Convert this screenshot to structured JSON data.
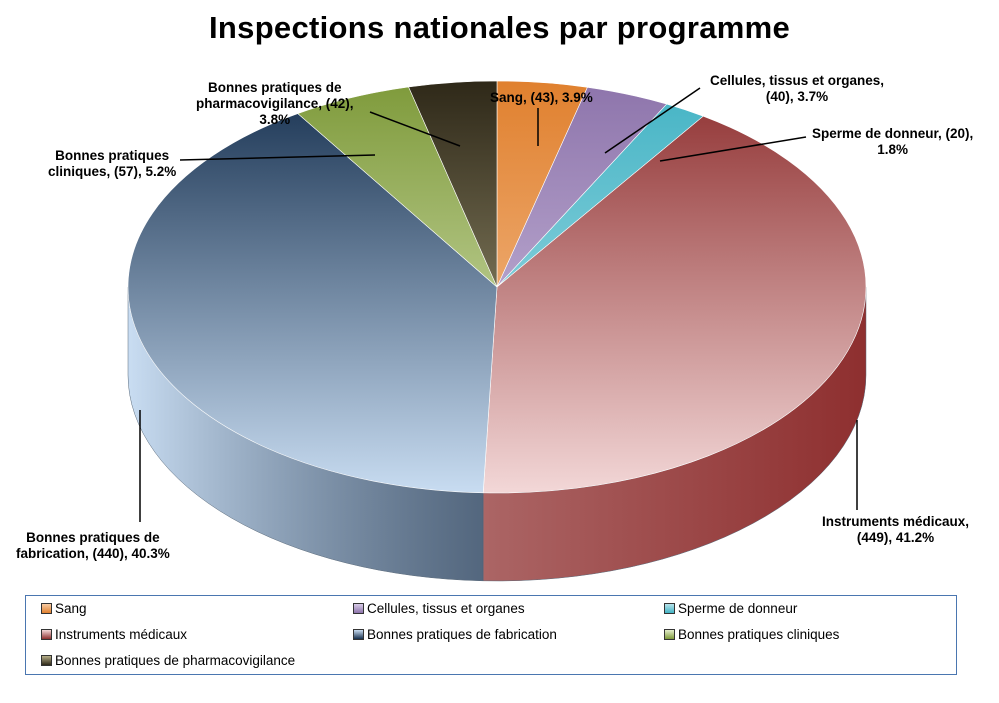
{
  "chart_data": {
    "type": "pie",
    "style": "3d",
    "title": "Inspections nationales par programme",
    "slices": [
      {
        "name": "Sang",
        "count": 43,
        "percent": 3.9,
        "color": "#e0802e",
        "light": "#f8cca4",
        "label_lines": [
          "Sang, (43), 3.9%"
        ]
      },
      {
        "name": "Cellules, tissus et organes",
        "count": 40,
        "percent": 3.7,
        "color": "#8d74ab",
        "light": "#d9cce8",
        "label_lines": [
          "Cellules, tissus et organes,",
          "(40), 3.7%"
        ]
      },
      {
        "name": "Sperme de donneur",
        "count": 20,
        "percent": 1.8,
        "color": "#43b3c4",
        "light": "#b8e4ec",
        "label_lines": [
          "Sperme de donneur, (20),",
          "1.8%"
        ]
      },
      {
        "name": "Instruments médicaux",
        "count": 449,
        "percent": 41.2,
        "color": "#8e2f2f",
        "light": "#f3d8d8",
        "label_lines": [
          "Instruments médicaux,",
          "(449), 41.2%"
        ]
      },
      {
        "name": "Bonnes pratiques de fabrication",
        "count": 440,
        "percent": 40.3,
        "color": "#16304f",
        "light": "#c9ddf2",
        "label_lines": [
          "Bonnes pratiques de",
          "fabrication, (440), 40.3%"
        ]
      },
      {
        "name": "Bonnes pratiques cliniques",
        "count": 57,
        "percent": 5.2,
        "color": "#7e9a3a",
        "light": "#e4eecb",
        "label_lines": [
          "Bonnes pratiques",
          "cliniques,  (57), 5.2%"
        ]
      },
      {
        "name": "Bonnes pratiques de pharmacovigilance",
        "count": 42,
        "percent": 3.8,
        "color": "#2e2818",
        "light": "#b8b08a",
        "label_lines": [
          "Bonnes pratiques de",
          "pharmacovigilance, (42),",
          "3.8%"
        ]
      }
    ],
    "legend": {
      "placement": "bottom",
      "border_color": "#4a76b0"
    }
  }
}
